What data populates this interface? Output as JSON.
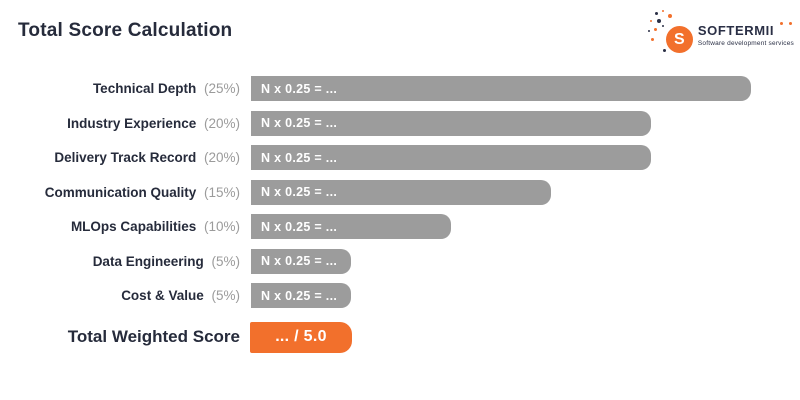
{
  "header": {
    "title": "Total Score Calculation",
    "logo": {
      "brand": "SOFTERMII",
      "monogram": "S",
      "tagline": "Software development services"
    }
  },
  "colors": {
    "accent_orange": "#F2702C",
    "bar_gray": "#9C9C9C",
    "text_dark": "#262B3B",
    "text_muted": "#9B9B9B"
  },
  "chart_data": {
    "type": "bar",
    "orientation": "horizontal",
    "title": "Total Score Calculation",
    "categories": [
      "Technical Depth",
      "Industry Experience",
      "Delivery Track Record",
      "Communication Quality",
      "MLOps Capabilities",
      "Data Engineering",
      "Cost & Value"
    ],
    "values_percent": [
      25,
      20,
      20,
      15,
      10,
      5,
      5
    ],
    "bar_value_labels": [
      "N x 0.25 = ...",
      "N x 0.25 = ...",
      "N x 0.25 = ...",
      "N x 0.25 = ...",
      "N x 0.25 = ...",
      "N x 0.25 = ...",
      "N x 0.25 = ..."
    ],
    "layout": {
      "value_axis_visible": false,
      "grid": false,
      "legend": false,
      "bar_length_scale": "proportional to weight percent"
    },
    "rows": [
      {
        "label": "Technical Depth",
        "weight_label": "(25%)",
        "weight_percent": 25,
        "formula": "N x 0.25 = ..."
      },
      {
        "label": "Industry Experience",
        "weight_label": "(20%)",
        "weight_percent": 20,
        "formula": "N x 0.25 = ..."
      },
      {
        "label": "Delivery Track Record",
        "weight_label": "(20%)",
        "weight_percent": 20,
        "formula": "N x 0.25 = ..."
      },
      {
        "label": "Communication Quality",
        "weight_label": "(15%)",
        "weight_percent": 15,
        "formula": "N x 0.25 = ..."
      },
      {
        "label": "MLOps Capabilities",
        "weight_label": "(10%)",
        "weight_percent": 10,
        "formula": "N x 0.25 = ..."
      },
      {
        "label": "Data Engineering",
        "weight_label": "(5%)",
        "weight_percent": 5,
        "formula": "N x 0.25 = ..."
      },
      {
        "label": "Cost & Value",
        "weight_label": "(5%)",
        "weight_percent": 5,
        "formula": "N x 0.25 = ..."
      }
    ],
    "total": {
      "label": "Total Weighted Score",
      "value": "... / 5.0",
      "max_score": "5.0"
    }
  }
}
